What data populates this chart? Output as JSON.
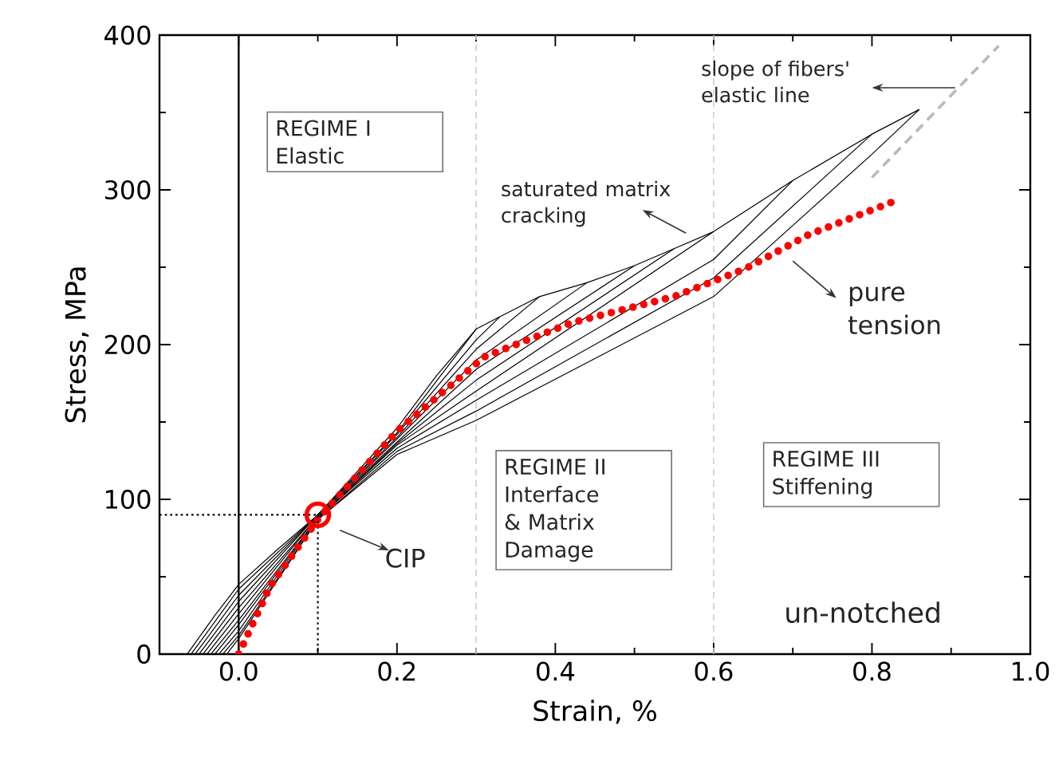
{
  "chart_data": {
    "type": "line",
    "xlabel": "Strain, %",
    "ylabel": "Stress, MPa",
    "xlim": [
      -0.1,
      1.0
    ],
    "ylim": [
      0,
      400
    ],
    "xticks": [
      {
        "value": 0,
        "label": "0.0"
      },
      0.2,
      0.4,
      0.6,
      0.8,
      {
        "value": 1.0,
        "label": "1.0"
      },
      {
        "value": 0.1,
        "label": null
      },
      {
        "value": 0.3,
        "label": null
      },
      {
        "value": 0.5,
        "label": null
      },
      {
        "value": 0.7,
        "label": null
      },
      {
        "value": 0.9,
        "label": null
      }
    ],
    "yticks": [
      0,
      100,
      200,
      300,
      400,
      {
        "value": 50,
        "label": null
      },
      {
        "value": 150,
        "label": null
      },
      {
        "value": 250,
        "label": null
      },
      {
        "value": 350,
        "label": null
      }
    ],
    "series": [
      {
        "color": "#000000",
        "line_style": "solid",
        "x": [
          -0.065,
          -0.03,
          0.0,
          0.05,
          0.1,
          0.15,
          0.2,
          0.25,
          0.3,
          0.33,
          0.38,
          0.44,
          0.5,
          0.55,
          0.6,
          0.7,
          0.8,
          0.86
        ],
        "values": [
          0,
          25,
          45,
          68,
          90,
          118,
          146,
          180,
          210,
          218,
          231,
          240,
          251,
          262,
          273,
          306,
          336,
          352
        ]
      },
      {
        "color": "#000000",
        "line_style": "solid",
        "x": [
          0.3,
          0.2,
          0.1,
          0.0,
          -0.06
        ],
        "values": [
          210,
          143,
          90,
          42,
          0
        ]
      },
      {
        "color": "#000000",
        "line_style": "solid",
        "x": [
          0.33,
          0.3,
          0.2,
          0.1,
          0.0,
          -0.055
        ],
        "values": [
          218,
          203,
          142,
          90,
          38,
          0
        ]
      },
      {
        "color": "#000000",
        "line_style": "solid",
        "x": [
          0.38,
          0.3,
          0.2,
          0.1,
          0.0,
          -0.05
        ],
        "values": [
          231,
          197,
          140,
          90,
          34,
          0
        ]
      },
      {
        "color": "#000000",
        "line_style": "solid",
        "x": [
          0.44,
          0.3,
          0.2,
          0.1,
          0.0,
          -0.045
        ],
        "values": [
          240,
          190,
          139,
          89,
          30,
          0
        ]
      },
      {
        "color": "#000000",
        "line_style": "solid",
        "x": [
          0.5,
          0.3,
          0.2,
          0.1,
          0.0,
          -0.04
        ],
        "values": [
          251,
          184,
          137,
          89,
          26,
          0
        ]
      },
      {
        "color": "#000000",
        "line_style": "solid",
        "x": [
          0.55,
          0.3,
          0.2,
          0.1,
          0.0,
          -0.035
        ],
        "values": [
          262,
          177,
          136,
          88,
          22,
          0
        ]
      },
      {
        "color": "#000000",
        "line_style": "solid",
        "x": [
          0.6,
          0.3,
          0.2,
          0.1,
          0.0,
          -0.03
        ],
        "values": [
          273,
          170,
          135,
          88,
          19,
          0
        ]
      },
      {
        "color": "#000000",
        "line_style": "solid",
        "x": [
          0.7,
          0.6,
          0.3,
          0.2,
          0.1,
          0.0,
          -0.025
        ],
        "values": [
          306,
          255,
          164,
          133,
          88,
          15,
          0
        ]
      },
      {
        "color": "#000000",
        "line_style": "solid",
        "x": [
          0.8,
          0.6,
          0.3,
          0.2,
          0.1,
          0.0,
          -0.02
        ],
        "values": [
          336,
          243,
          157,
          131,
          87,
          12,
          0
        ]
      },
      {
        "color": "#000000",
        "line_style": "solid",
        "x": [
          0.86,
          0.8,
          0.6,
          0.3,
          0.2,
          0.1,
          0.0,
          -0.015
        ],
        "values": [
          352,
          323,
          231,
          151,
          129,
          87,
          10,
          0
        ]
      },
      {
        "name": "pure tension",
        "color": "#ff0000",
        "line_style": "dotted",
        "x": [
          0.0,
          0.04,
          0.1,
          0.2,
          0.31,
          0.42,
          0.55,
          0.64,
          0.72,
          0.83
        ],
        "values": [
          0,
          44,
          87,
          144,
          192,
          214,
          231,
          249,
          271,
          293
        ]
      },
      {
        "color": "#bbbbbb",
        "line_style": "dashed",
        "x": [
          0.8,
          0.96
        ],
        "values": [
          308,
          393
        ]
      },
      {
        "color": "#000000",
        "line_style": "dotted",
        "x": [
          -0.1,
          0.1,
          0.1
        ],
        "values": [
          90,
          90,
          0
        ]
      }
    ],
    "ref_lines": [
      {
        "axis": "x",
        "value": 0,
        "color": "#000000",
        "line_style": "solid"
      },
      {
        "axis": "x",
        "value": 0.3,
        "color": "#cccccc",
        "line_style": "dashed"
      },
      {
        "axis": "x",
        "value": 0.6,
        "color": "#cccccc",
        "line_style": "dashed"
      }
    ],
    "annotations": [
      "REGIME I Elastic",
      "REGIME II Interface & Matrix Damage",
      "REGIME III Stiffening",
      {
        "text": "saturated matrix cracking",
        "x": 0.58,
        "y": 268
      },
      {
        "text": "CIP",
        "x": 0.1,
        "y": 90
      },
      "un-notched",
      "slope of fibers' elastic line"
    ]
  }
}
